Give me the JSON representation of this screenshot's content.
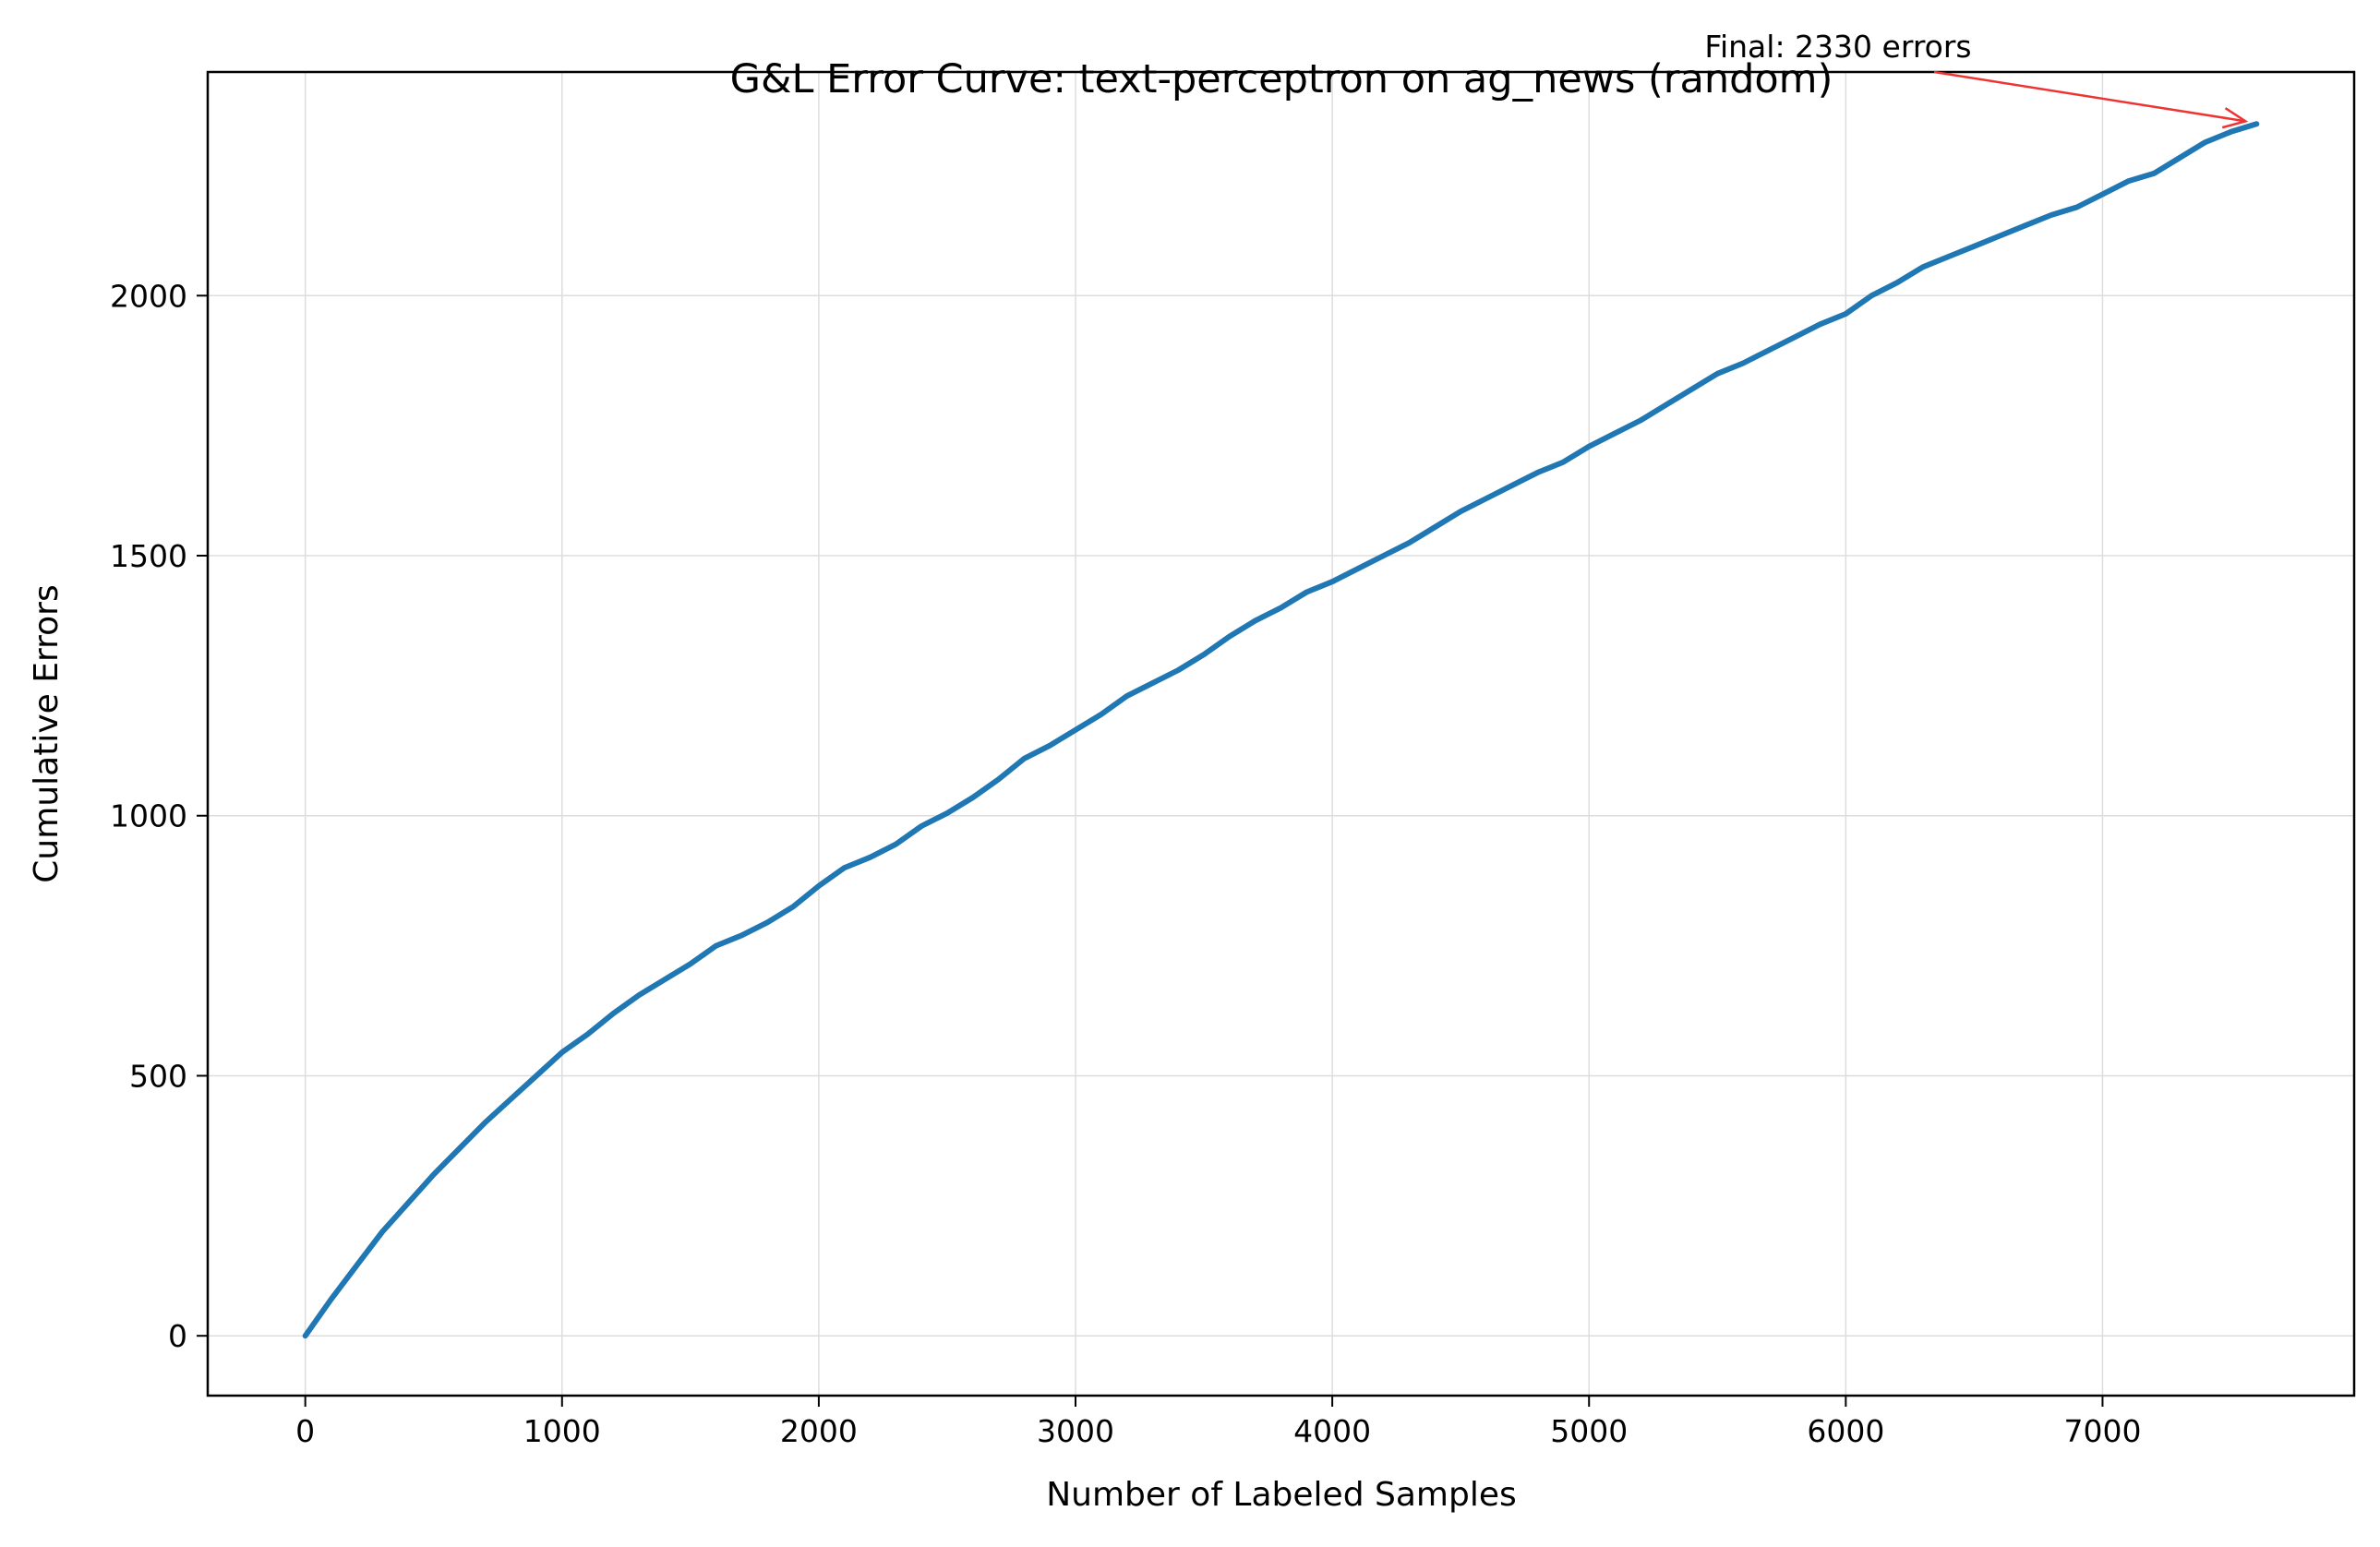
{
  "chart_data": {
    "type": "line",
    "title": "G&L Error Curve: text-perceptron on ag_news (random)",
    "xlabel": "Number of Labeled Samples",
    "ylabel": "Cumulative Errors",
    "xlim": [
      -380,
      7980
    ],
    "ylim": [
      -115,
      2430
    ],
    "x_ticks": [
      0,
      1000,
      2000,
      3000,
      4000,
      5000,
      6000,
      7000
    ],
    "y_ticks": [
      0,
      500,
      1000,
      1500,
      2000
    ],
    "grid": true,
    "line_color": "#1f77b4",
    "series": [
      {
        "x": [
          0,
          100,
          200,
          300,
          400,
          500,
          600,
          700,
          800,
          900,
          1000,
          1100,
          1200,
          1300,
          1400,
          1500,
          1600,
          1700,
          1800,
          1900,
          2000,
          2100,
          2200,
          2300,
          2400,
          2500,
          2600,
          2700,
          2800,
          2900,
          3000,
          3100,
          3200,
          3300,
          3400,
          3500,
          3600,
          3700,
          3800,
          3900,
          4000,
          4100,
          4200,
          4300,
          4400,
          4500,
          4600,
          4700,
          4800,
          4900,
          5000,
          5100,
          5200,
          5300,
          5400,
          5500,
          5600,
          5700,
          5800,
          5900,
          6000,
          6100,
          6200,
          6300,
          6400,
          6500,
          6600,
          6700,
          6800,
          6900,
          7000,
          7100,
          7200,
          7300,
          7400,
          7500,
          7600
        ],
        "y": [
          0,
          70,
          135,
          200,
          255,
          310,
          360,
          410,
          455,
          500,
          545,
          580,
          620,
          655,
          685,
          715,
          750,
          770,
          795,
          825,
          865,
          900,
          920,
          945,
          980,
          1005,
          1035,
          1070,
          1110,
          1135,
          1165,
          1195,
          1230,
          1255,
          1280,
          1310,
          1345,
          1375,
          1400,
          1430,
          1450,
          1475,
          1500,
          1525,
          1555,
          1585,
          1610,
          1635,
          1660,
          1680,
          1710,
          1735,
          1760,
          1790,
          1820,
          1850,
          1870,
          1895,
          1920,
          1945,
          1965,
          2000,
          2025,
          2055,
          2075,
          2095,
          2115,
          2135,
          2155,
          2170,
          2195,
          2220,
          2235,
          2265,
          2295,
          2315,
          2330
        ]
      }
    ],
    "annotation": {
      "text": "Final: 2330 errors",
      "x": 7600,
      "y": 2330,
      "color": "#ee3333"
    }
  }
}
